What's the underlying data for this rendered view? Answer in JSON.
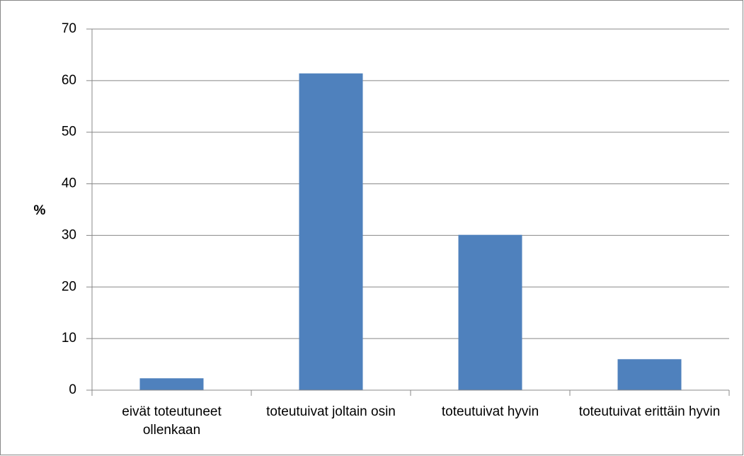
{
  "chart_data": {
    "type": "bar",
    "y_label": "%",
    "categories": [
      "eivät toteutuneet ollenkaan",
      "toteutuivat joltain osin",
      "toteutuivat hyvin",
      "toteutuivat erittäin hyvin"
    ],
    "values": [
      2.3,
      61.4,
      30.1,
      6
    ],
    "color": "#4f81bd",
    "ylim": [
      0,
      70
    ],
    "yticks": [
      0,
      10,
      20,
      30,
      40,
      50,
      60,
      70
    ],
    "grid": true
  }
}
